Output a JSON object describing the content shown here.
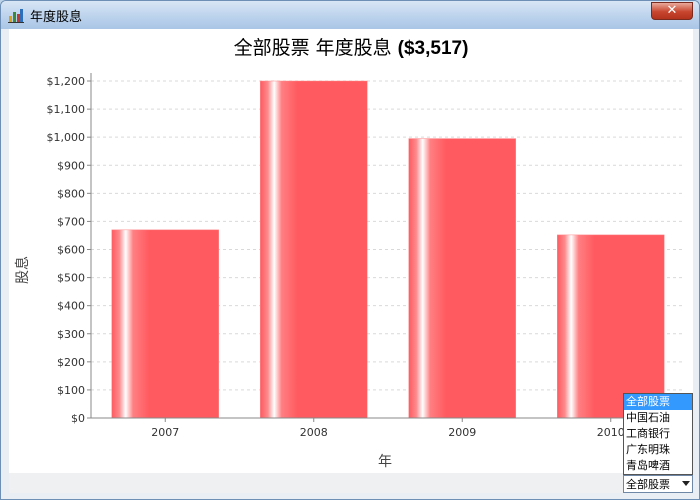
{
  "window": {
    "title": "年度股息",
    "app_icon": "chart-app-icon",
    "close_icon": "close-icon",
    "close_glyph": "✕"
  },
  "chart_data": {
    "type": "bar",
    "title": "全部股票 年度股息",
    "title_total": "($3,517)",
    "xlabel": "年",
    "ylabel": "股息",
    "categories": [
      "2007",
      "2008",
      "2009",
      "2010"
    ],
    "values": [
      670,
      1200,
      995,
      652
    ],
    "ylim": [
      0,
      1200
    ],
    "yticks": [
      0,
      100,
      200,
      300,
      400,
      500,
      600,
      700,
      800,
      900,
      1000,
      1100,
      1200
    ],
    "ytick_format": "$",
    "grid": true,
    "legend": "none",
    "bar_color": "#ff5a5f",
    "bar_highlight": "#ffffff"
  },
  "stock_selector": {
    "selected": "全部股票",
    "options": [
      "全部股票",
      "中国石油",
      "工商银行",
      "广东明珠",
      "青岛啤酒"
    ],
    "dropdown_icon": "chevron-down-icon"
  },
  "colors": {
    "titlebar": "#c1d6ee",
    "selection": "#3399ff",
    "close_button": "#c8452e"
  }
}
